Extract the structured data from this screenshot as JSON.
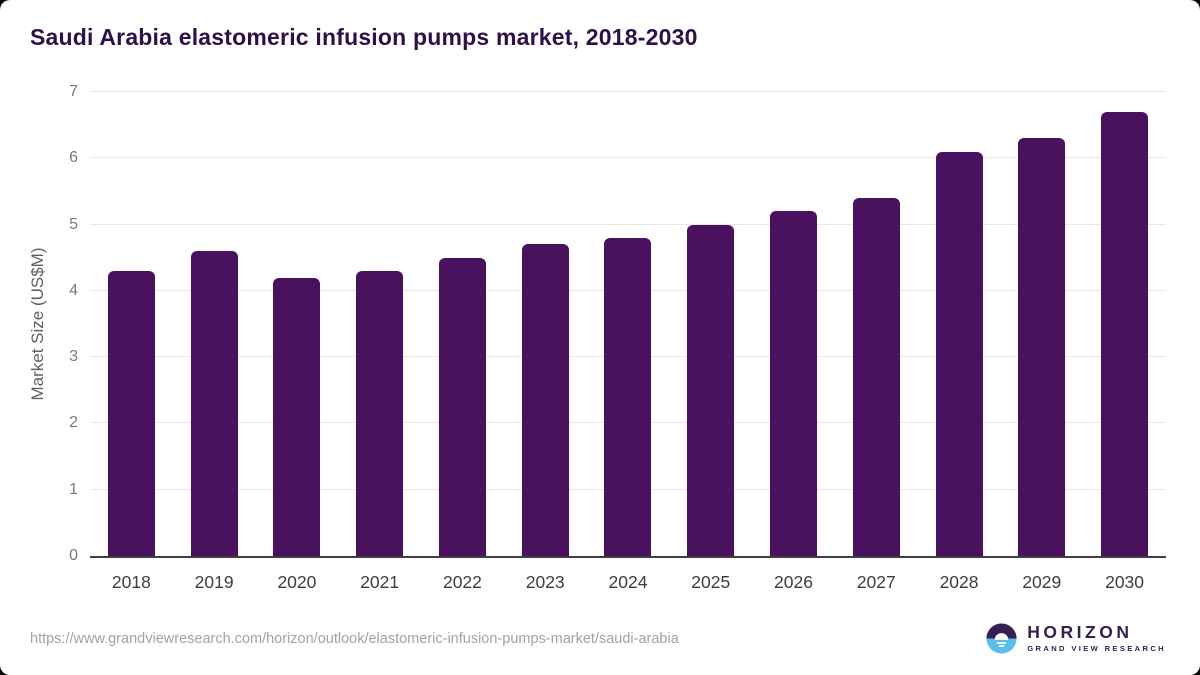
{
  "title": "Saudi Arabia elastomeric infusion pumps market, 2018-2030",
  "chart_data": {
    "type": "bar",
    "title": "Saudi Arabia elastomeric infusion pumps market, 2018-2030",
    "categories": [
      "2018",
      "2019",
      "2020",
      "2021",
      "2022",
      "2023",
      "2024",
      "2025",
      "2026",
      "2027",
      "2028",
      "2029",
      "2030"
    ],
    "values": [
      4.3,
      4.6,
      4.2,
      4.3,
      4.5,
      4.7,
      4.8,
      5.0,
      5.2,
      5.4,
      6.1,
      6.3,
      6.7
    ],
    "xlabel": "",
    "ylabel": "Market Size (US$M)",
    "ylim": [
      0,
      7
    ],
    "yticks": [
      0,
      1,
      2,
      3,
      4,
      5,
      6,
      7
    ],
    "grid": true,
    "legend": "none",
    "bar_color": "#4a115e"
  },
  "colors": {
    "title_text": "#2f1049",
    "bar": "#4a115e",
    "gridline": "#e8e8e8",
    "axis_line": "#3f3f3f",
    "tick_text": "#7a7a7a",
    "x_label_text": "#3d3d3d",
    "url_text": "#a3a3a3",
    "logo_purple": "#342051",
    "logo_blue": "#58bfe8"
  },
  "footer": {
    "source_url": "https://www.grandviewresearch.com/horizon/outlook/elastomeric-infusion-pumps-market/saudi-arabia",
    "logo": {
      "brand": "HORIZON",
      "sub_brand": "GRAND VIEW RESEARCH"
    }
  }
}
